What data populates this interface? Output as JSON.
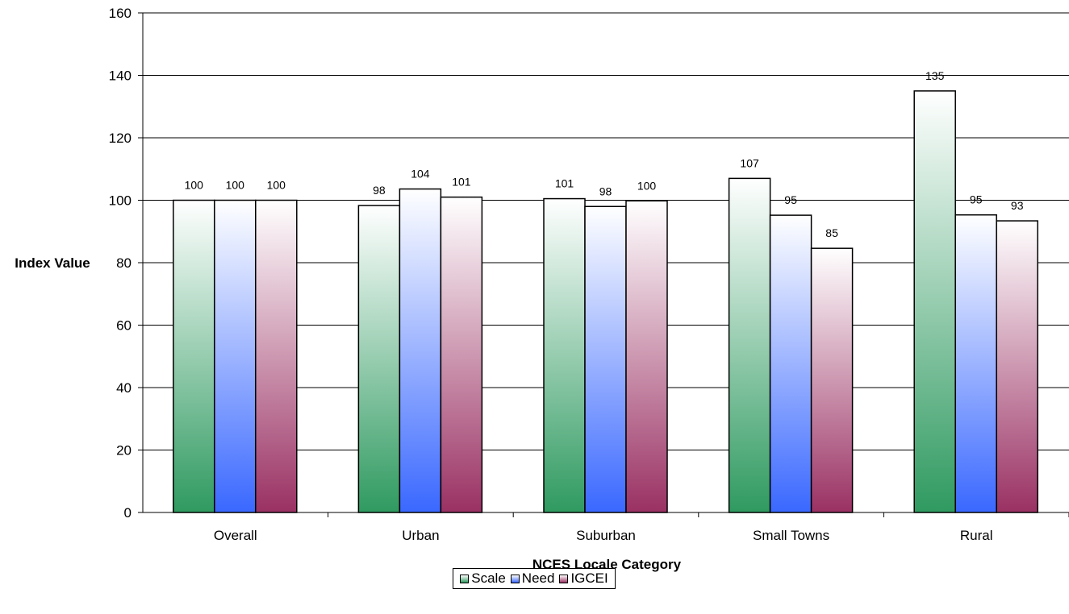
{
  "chart_data": {
    "type": "bar",
    "title": "",
    "xlabel": "NCES Locale Category",
    "ylabel": "Index Value",
    "ylim": [
      0,
      160
    ],
    "yticks": [
      0,
      20,
      40,
      60,
      80,
      100,
      120,
      140,
      160
    ],
    "grid": true,
    "legend": "bottom-center",
    "categories": [
      "Overall",
      "Urban",
      "Suburban",
      "Small Towns",
      "Rural"
    ],
    "series": [
      {
        "name": "Scale",
        "values": [
          100,
          98.3,
          100.5,
          107,
          135
        ],
        "labels": [
          "100",
          "98",
          "101",
          "107",
          "135"
        ],
        "color_top": "#ffffff",
        "color_bottom": "#2f9a60"
      },
      {
        "name": "Need",
        "values": [
          100,
          103.6,
          98,
          95.2,
          95.3
        ],
        "labels": [
          "100",
          "104",
          "98",
          "95",
          "95"
        ],
        "color_top": "#ffffff",
        "color_bottom": "#3a68ff"
      },
      {
        "name": "IGCEI",
        "values": [
          100,
          101,
          99.8,
          84.6,
          93.4
        ],
        "labels": [
          "100",
          "101",
          "100",
          "85",
          "93"
        ],
        "color_top": "#ffffff",
        "color_bottom": "#9a3163"
      }
    ]
  }
}
